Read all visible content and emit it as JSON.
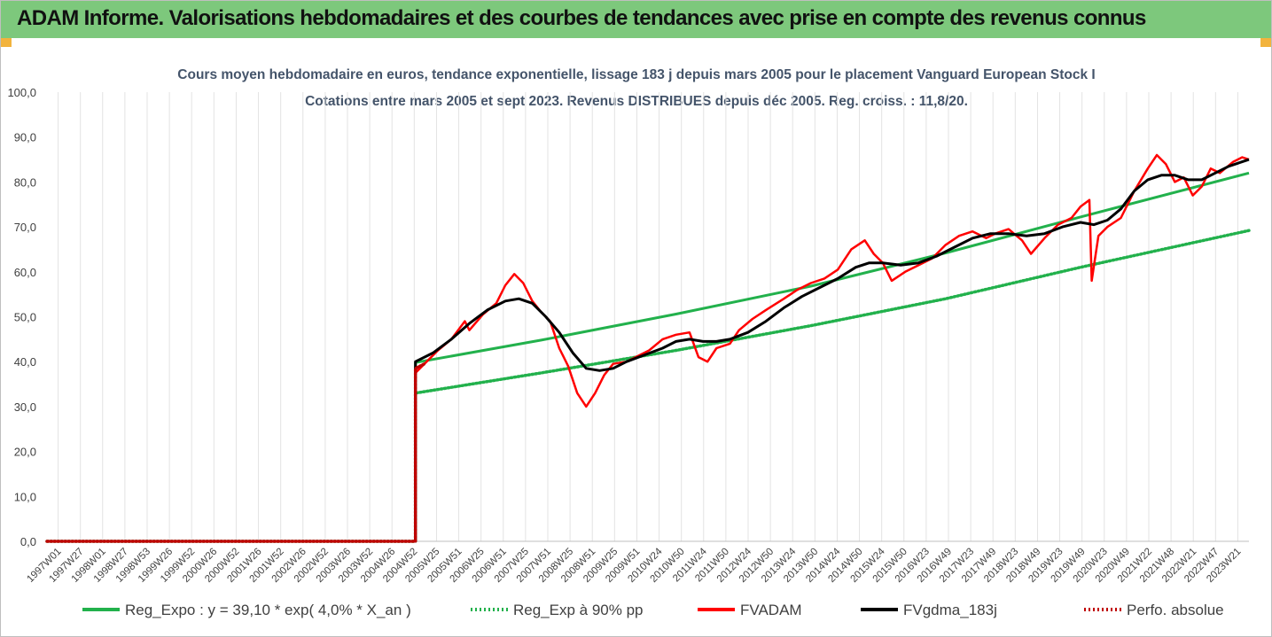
{
  "banner": {
    "title": "ADAM Informe. Valorisations hebdomadaires et des courbes de tendances avec prise en compte des revenus connus",
    "background": "#7dc87c",
    "corner_color": "#f2b33d"
  },
  "chart_data": {
    "type": "line",
    "title": "Cours moyen hebdomadaire en euros, tendance exponentielle, lissage 183 j depuis mars 2005 pour le placement Vanguard European Stock I",
    "subtitle": "Cotations entre mars 2005 et sept 2023. Revenus DISTRIBUES depuis déc 2005. Reg. croiss. : 11,8/20.",
    "xlabel": "",
    "ylabel": "",
    "ylim": [
      0,
      100
    ],
    "y_ticks": [
      "0,0",
      "10,0",
      "20,0",
      "30,0",
      "40,0",
      "50,0",
      "60,0",
      "70,0",
      "80,0",
      "90,0",
      "100,0"
    ],
    "x_ticks": [
      "1997W01",
      "1997W27",
      "1998W01",
      "1998W27",
      "1998W53",
      "1999W26",
      "1999W52",
      "2000W26",
      "2000W52",
      "2001W26",
      "2001W52",
      "2002W26",
      "2002W52",
      "2003W26",
      "2003W52",
      "2004W26",
      "2004W52",
      "2005W25",
      "2005W51",
      "2006W25",
      "2006W51",
      "2007W25",
      "2007W51",
      "2008W25",
      "2008W51",
      "2009W25",
      "2009W51",
      "2010W24",
      "2010W50",
      "2011W24",
      "2011W50",
      "2012W24",
      "2012W50",
      "2013W24",
      "2013W50",
      "2014W24",
      "2014W50",
      "2015W24",
      "2015W50",
      "2016W23",
      "2016W49",
      "2017W23",
      "2017W49",
      "2018W23",
      "2018W49",
      "2019W23",
      "2019W49",
      "2020W23",
      "2020W49",
      "2021W22",
      "2021W48",
      "2022W21",
      "2022W47",
      "2023W21"
    ],
    "x_range": [
      1997.0,
      2023.75
    ],
    "grid": "vertical",
    "legend_position": "bottom",
    "series": [
      {
        "name": "Reg_Expo : y = 39,10 * exp( 4,0% *  X_an )",
        "color": "#22b14c",
        "style": "solid",
        "x": [
          1997.0,
          2005.2,
          2005.2,
          2008.0,
          2011.0,
          2014.0,
          2017.0,
          2020.0,
          2023.75
        ],
        "y": [
          0,
          0,
          39.8,
          44.8,
          50.6,
          56.8,
          64.2,
          72.2,
          82.0
        ]
      },
      {
        "name": "Reg_Exp à 90% pp",
        "color": "#22b14c",
        "style": "dotted",
        "x": [
          1997.0,
          2005.2,
          2005.2,
          2008.0,
          2011.0,
          2014.0,
          2017.0,
          2020.0,
          2023.75
        ],
        "y": [
          0,
          0,
          33.0,
          37.5,
          42.5,
          48.0,
          54.0,
          61.0,
          69.2
        ]
      },
      {
        "name": "FVADAM",
        "color": "#ff0000",
        "style": "solid",
        "x": [
          1997.0,
          2005.2,
          2005.2,
          2005.4,
          2005.7,
          2006.0,
          2006.3,
          2006.4,
          2006.7,
          2007.0,
          2007.2,
          2007.4,
          2007.6,
          2007.8,
          2008.0,
          2008.2,
          2008.4,
          2008.6,
          2008.8,
          2009.0,
          2009.2,
          2009.4,
          2009.6,
          2009.9,
          2010.2,
          2010.4,
          2010.7,
          2011.0,
          2011.3,
          2011.5,
          2011.7,
          2011.9,
          2012.2,
          2012.4,
          2012.7,
          2013.0,
          2013.4,
          2013.7,
          2014.0,
          2014.3,
          2014.6,
          2014.9,
          2015.2,
          2015.4,
          2015.6,
          2015.8,
          2016.1,
          2016.4,
          2016.7,
          2017.0,
          2017.3,
          2017.6,
          2017.9,
          2018.1,
          2018.4,
          2018.7,
          2018.9,
          2019.2,
          2019.5,
          2019.8,
          2020.0,
          2020.2,
          2020.25,
          2020.4,
          2020.6,
          2020.9,
          2021.2,
          2021.5,
          2021.7,
          2021.9,
          2022.1,
          2022.3,
          2022.5,
          2022.7,
          2022.9,
          2023.1,
          2023.4,
          2023.6,
          2023.75
        ],
        "y": [
          0,
          0,
          37.5,
          39.5,
          42.5,
          45.0,
          49.0,
          47.0,
          50.5,
          53.0,
          57.0,
          59.5,
          57.5,
          53.5,
          51.0,
          49.0,
          43.0,
          39.0,
          33.0,
          30.0,
          33.0,
          37.0,
          39.5,
          40.0,
          41.5,
          42.5,
          45.0,
          46.0,
          46.5,
          41.0,
          40.0,
          43.0,
          44.0,
          47.0,
          49.5,
          51.5,
          54.0,
          56.0,
          57.5,
          58.5,
          60.5,
          65.0,
          67.0,
          64.0,
          62.0,
          58.0,
          60.0,
          61.5,
          63.0,
          66.0,
          68.0,
          69.0,
          67.5,
          68.5,
          69.5,
          67.0,
          64.0,
          67.5,
          70.5,
          72.0,
          74.5,
          76.0,
          58.0,
          68.0,
          70.0,
          72.0,
          78.0,
          83.0,
          86.0,
          84.0,
          80.0,
          81.0,
          77.0,
          79.0,
          83.0,
          82.0,
          84.5,
          85.5,
          85.0
        ]
      },
      {
        "name": "FVgdma_183j",
        "color": "#000000",
        "style": "solid",
        "x": [
          1997.0,
          2005.2,
          2005.2,
          2005.6,
          2006.0,
          2006.4,
          2006.8,
          2007.2,
          2007.5,
          2007.8,
          2008.1,
          2008.4,
          2008.7,
          2009.0,
          2009.3,
          2009.6,
          2009.9,
          2010.3,
          2010.7,
          2011.0,
          2011.3,
          2011.6,
          2011.9,
          2012.2,
          2012.6,
          2013.0,
          2013.4,
          2013.8,
          2014.2,
          2014.6,
          2015.0,
          2015.3,
          2015.6,
          2016.0,
          2016.4,
          2016.8,
          2017.2,
          2017.6,
          2018.0,
          2018.4,
          2018.8,
          2019.2,
          2019.6,
          2020.0,
          2020.3,
          2020.6,
          2020.9,
          2021.2,
          2021.5,
          2021.8,
          2022.1,
          2022.4,
          2022.7,
          2023.0,
          2023.3,
          2023.6,
          2023.75
        ],
        "y": [
          0,
          0,
          40.0,
          42.0,
          45.0,
          48.5,
          51.5,
          53.5,
          54.0,
          53.0,
          50.0,
          46.5,
          42.0,
          38.5,
          38.0,
          38.5,
          40.0,
          41.5,
          43.0,
          44.5,
          45.0,
          44.5,
          44.5,
          45.0,
          46.5,
          49.0,
          52.0,
          54.5,
          56.5,
          58.5,
          61.0,
          62.0,
          62.0,
          61.5,
          62.0,
          63.5,
          65.5,
          67.5,
          68.5,
          68.5,
          68.0,
          68.5,
          70.0,
          71.0,
          70.5,
          71.5,
          74.0,
          78.0,
          80.5,
          81.5,
          81.5,
          80.5,
          80.5,
          82.0,
          83.5,
          84.5,
          85.0
        ]
      },
      {
        "name": "Perfo. absolue",
        "color": "#c00000",
        "style": "dotted",
        "x": [
          1997.0,
          2005.2,
          2005.2,
          2005.4
        ],
        "y": [
          0,
          0,
          38.5,
          39.5
        ]
      }
    ]
  }
}
